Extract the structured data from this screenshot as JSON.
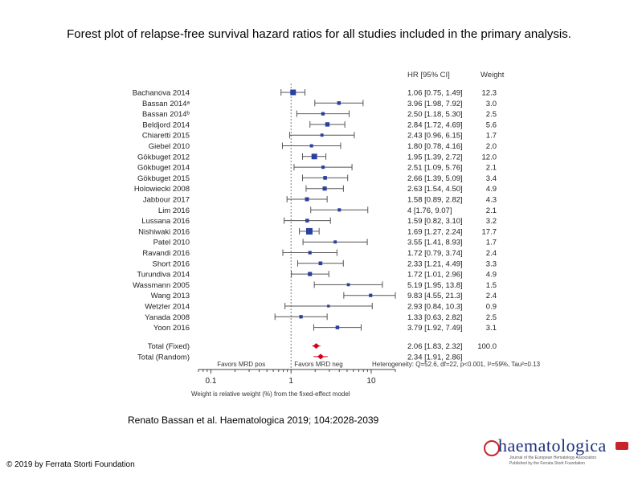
{
  "slide": {
    "title": "Forest plot of relapse-free survival hazard ratios for all studies included in the primary analysis.",
    "citation": "Renato Bassan et al. Haematologica 2019; 104:2028-2039",
    "copyright": "© 2019 by Ferrata Storti Foundation",
    "logo_text": "haematologica",
    "logo_sub1": "Journal of the European Hematology Association",
    "logo_sub2": "Published by the Ferrata Storti Foundation"
  },
  "colors": {
    "study": "#2b3fa0",
    "pooled": "#d0021b",
    "line": "#555555"
  },
  "chart_data": {
    "type": "forest",
    "scale": "log",
    "xlim": [
      0.07,
      20
    ],
    "xticks": [
      0.1,
      1,
      10
    ],
    "xtick_labels": [
      "0.1",
      "1",
      "10"
    ],
    "header_hr": "HR [95% CI]",
    "header_weight": "Weight",
    "studies": [
      {
        "name": "Bachanova 2014",
        "hr": 1.06,
        "lo": 0.75,
        "hi": 1.49,
        "ci": "1.06 [0.75, 1.49]",
        "weight": "12.3",
        "w": 12.3
      },
      {
        "name": "Bassan 2014ᵃ",
        "hr": 3.96,
        "lo": 1.98,
        "hi": 7.92,
        "ci": "3.96 [1.98, 7.92]",
        "weight": "3.0",
        "w": 3.0
      },
      {
        "name": "Bassan 2014ᵇ",
        "hr": 2.5,
        "lo": 1.18,
        "hi": 5.3,
        "ci": "2.50 [1.18, 5.30]",
        "weight": "2.5",
        "w": 2.5
      },
      {
        "name": "Beldjord 2014",
        "hr": 2.84,
        "lo": 1.72,
        "hi": 4.69,
        "ci": "2.84 [1.72, 4.69]",
        "weight": "5.6",
        "w": 5.6
      },
      {
        "name": "Chiaretti 2015",
        "hr": 2.43,
        "lo": 0.96,
        "hi": 6.15,
        "ci": "2.43 [0.96, 6.15]",
        "weight": "1.7",
        "w": 1.7
      },
      {
        "name": "Giebel 2010",
        "hr": 1.8,
        "lo": 0.78,
        "hi": 4.16,
        "ci": "1.80 [0.78, 4.16]",
        "weight": "2.0",
        "w": 2.0
      },
      {
        "name": "Gökbuget 2012",
        "hr": 1.95,
        "lo": 1.39,
        "hi": 2.72,
        "ci": "1.95 [1.39, 2.72]",
        "weight": "12.0",
        "w": 12.0
      },
      {
        "name": "Gökbuget 2014",
        "hr": 2.51,
        "lo": 1.09,
        "hi": 5.76,
        "ci": "2.51 [1.09, 5.76]",
        "weight": "2.1",
        "w": 2.1
      },
      {
        "name": "Gökbuget 2015",
        "hr": 2.66,
        "lo": 1.39,
        "hi": 5.09,
        "ci": "2.66 [1.39, 5.09]",
        "weight": "3.4",
        "w": 3.4
      },
      {
        "name": "Holowiecki 2008",
        "hr": 2.63,
        "lo": 1.54,
        "hi": 4.5,
        "ci": "2.63 [1.54, 4.50]",
        "weight": "4.9",
        "w": 4.9
      },
      {
        "name": "Jabbour 2017",
        "hr": 1.58,
        "lo": 0.89,
        "hi": 2.82,
        "ci": "1.58 [0.89, 2.82]",
        "weight": "4.3",
        "w": 4.3
      },
      {
        "name": "Lim 2016",
        "hr": 4,
        "lo": 1.76,
        "hi": 9.07,
        "ci": "4 [1.76, 9.07]",
        "weight": "2.1",
        "w": 2.1
      },
      {
        "name": "Lussana 2016",
        "hr": 1.59,
        "lo": 0.82,
        "hi": 3.1,
        "ci": "1.59 [0.82, 3.10]",
        "weight": "3.2",
        "w": 3.2
      },
      {
        "name": "Nishiwaki 2016",
        "hr": 1.69,
        "lo": 1.27,
        "hi": 2.24,
        "ci": "1.69 [1.27, 2.24]",
        "weight": "17.7",
        "w": 17.7
      },
      {
        "name": "Patel 2010",
        "hr": 3.55,
        "lo": 1.41,
        "hi": 8.93,
        "ci": "3.55 [1.41, 8.93]",
        "weight": "1.7",
        "w": 1.7
      },
      {
        "name": "Ravandi 2016",
        "hr": 1.72,
        "lo": 0.79,
        "hi": 3.74,
        "ci": "1.72 [0.79, 3.74]",
        "weight": "2.4",
        "w": 2.4
      },
      {
        "name": "Short 2016",
        "hr": 2.33,
        "lo": 1.21,
        "hi": 4.49,
        "ci": "2.33 [1.21, 4.49]",
        "weight": "3.3",
        "w": 3.3
      },
      {
        "name": "Turundiva 2014",
        "hr": 1.72,
        "lo": 1.01,
        "hi": 2.96,
        "ci": "1.72 [1.01, 2.96]",
        "weight": "4.9",
        "w": 4.9
      },
      {
        "name": "Wassmann 2005",
        "hr": 5.19,
        "lo": 1.95,
        "hi": 13.8,
        "ci": "5.19 [1.95, 13.8]",
        "weight": "1.5",
        "w": 1.5
      },
      {
        "name": "Wang 2013",
        "hr": 9.83,
        "lo": 4.55,
        "hi": 21.3,
        "ci": "9.83 [4.55, 21.3]",
        "weight": "2.4",
        "w": 2.4
      },
      {
        "name": "Wetzler 2014",
        "hr": 2.93,
        "lo": 0.84,
        "hi": 10.3,
        "ci": "2.93 [0.84, 10.3]",
        "weight": "0.9",
        "w": 0.9
      },
      {
        "name": "Yanada 2008",
        "hr": 1.33,
        "lo": 0.63,
        "hi": 2.82,
        "ci": "1.33 [0.63, 2.82]",
        "weight": "2.5",
        "w": 2.5
      },
      {
        "name": "Yoon 2016",
        "hr": 3.79,
        "lo": 1.92,
        "hi": 7.49,
        "ci": "3.79 [1.92, 7.49]",
        "weight": "3.1",
        "w": 3.1
      }
    ],
    "pooled": [
      {
        "name": "Total (Fixed)",
        "hr": 2.06,
        "lo": 1.83,
        "hi": 2.32,
        "ci": "2.06 [1.83, 2.32]",
        "weight": "100.0"
      },
      {
        "name": "Total (Random)",
        "hr": 2.34,
        "lo": 1.91,
        "hi": 2.86,
        "ci": "2.34 [1.91, 2.86]",
        "weight": ""
      }
    ],
    "favors_left": "Favors MRD pos",
    "favors_right": "Favors MRD neg",
    "heterogeneity": "Heterogeneity: Q=52.6, df=22, p<0.001, I²=59%, Tau²=0.13",
    "footnote": "Weight is relative weight (%) from the fixed-effect model"
  }
}
